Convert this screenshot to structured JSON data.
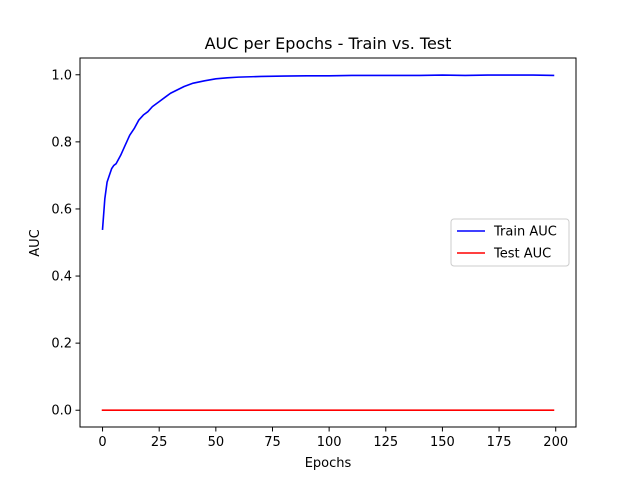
{
  "chart_data": {
    "type": "line",
    "title": "AUC per Epochs - Train vs. Test",
    "xlabel": "Epochs",
    "ylabel": "AUC",
    "xlim": [
      -9.95,
      208.95
    ],
    "ylim": [
      -0.05,
      1.05
    ],
    "xticks": [
      0,
      25,
      50,
      75,
      100,
      125,
      150,
      175,
      200
    ],
    "yticks": [
      0.0,
      0.2,
      0.4,
      0.6,
      0.8,
      1.0
    ],
    "xtick_labels": [
      "0",
      "25",
      "50",
      "75",
      "100",
      "125",
      "150",
      "175",
      "200"
    ],
    "ytick_labels": [
      "0.0",
      "0.2",
      "0.4",
      "0.6",
      "0.8",
      "1.0"
    ],
    "grid": false,
    "legend_position": "center-right",
    "series": [
      {
        "name": "Train AUC",
        "color": "#0000ff",
        "x": [
          0,
          1,
          2,
          3,
          4,
          5,
          6,
          8,
          10,
          12,
          14,
          16,
          18,
          20,
          22,
          25,
          28,
          30,
          33,
          36,
          40,
          45,
          50,
          55,
          60,
          70,
          80,
          90,
          100,
          110,
          120,
          130,
          140,
          150,
          160,
          170,
          180,
          190,
          199
        ],
        "y": [
          0.54,
          0.63,
          0.68,
          0.7,
          0.72,
          0.73,
          0.735,
          0.76,
          0.79,
          0.82,
          0.84,
          0.865,
          0.88,
          0.89,
          0.905,
          0.92,
          0.935,
          0.945,
          0.955,
          0.965,
          0.975,
          0.982,
          0.988,
          0.991,
          0.993,
          0.995,
          0.996,
          0.997,
          0.997,
          0.998,
          0.998,
          0.998,
          0.998,
          0.999,
          0.998,
          0.999,
          0.999,
          0.999,
          0.998
        ]
      },
      {
        "name": "Test AUC",
        "color": "#ff0000",
        "x": [
          0,
          199
        ],
        "y": [
          0.0,
          0.0
        ]
      }
    ]
  }
}
